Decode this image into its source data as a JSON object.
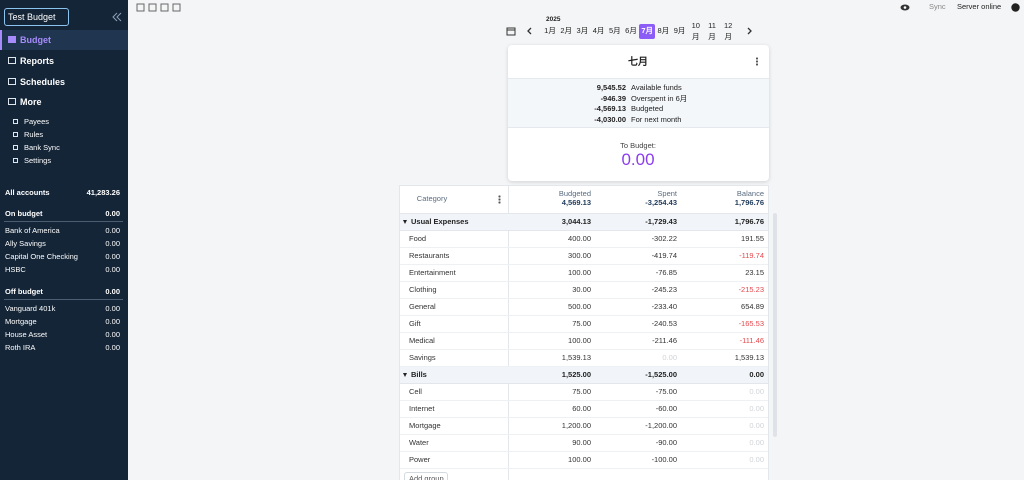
{
  "sidebar": {
    "budget_name": "Test Budget",
    "nav": [
      "Budget",
      "Reports",
      "Schedules",
      "More"
    ],
    "more_items": [
      "Payees",
      "Rules",
      "Bank Sync",
      "Settings"
    ],
    "all_accounts": {
      "name": "All accounts",
      "balance": "41,283.26"
    },
    "account_groups": [
      {
        "name": "On budget",
        "balance": "0.00",
        "accounts": [
          {
            "name": "Bank of America",
            "balance": "0.00"
          },
          {
            "name": "Ally Savings",
            "balance": "0.00"
          },
          {
            "name": "Capital One Checking",
            "balance": "0.00"
          },
          {
            "name": "HSBC",
            "balance": "0.00"
          }
        ]
      },
      {
        "name": "Off budget",
        "balance": "0.00",
        "accounts": [
          {
            "name": "Vanguard 401k",
            "balance": "0.00"
          },
          {
            "name": "Mortgage",
            "balance": "0.00"
          },
          {
            "name": "House Asset",
            "balance": "0.00"
          },
          {
            "name": "Roth IRA",
            "balance": "0.00"
          }
        ]
      }
    ]
  },
  "header": {
    "sync": "Sync",
    "server_status": "Server online"
  },
  "month_picker": {
    "year": "2025",
    "months": [
      "1月",
      "2月",
      "3月",
      "4月",
      "5月",
      "6月",
      "7月",
      "8月",
      "9月",
      "10月",
      "11月",
      "12月"
    ],
    "selected": 6
  },
  "summary": {
    "month": "七月",
    "rows": [
      {
        "value": "9,545.52",
        "label": "Available funds"
      },
      {
        "value": "-946.39",
        "label": "Overspent in 6月"
      },
      {
        "value": "-4,569.13",
        "label": "Budgeted"
      },
      {
        "value": "-4,030.00",
        "label": "For next month"
      }
    ],
    "to_budget_label": "To Budget:",
    "to_budget": "0.00"
  },
  "table": {
    "columns": {
      "category": "Category",
      "budgeted": "Budgeted",
      "spent": "Spent",
      "balance": "Balance"
    },
    "totals": {
      "budgeted": "4,569.13",
      "spent": "-3,254.43",
      "balance": "1,796.76"
    },
    "groups": [
      {
        "name": "Usual Expenses",
        "budgeted": "3,044.13",
        "spent": "-1,729.43",
        "balance": "1,796.76",
        "rows": [
          {
            "name": "Food",
            "budgeted": "400.00",
            "spent": "-302.22",
            "balance": "191.55"
          },
          {
            "name": "Restaurants",
            "budgeted": "300.00",
            "spent": "-419.74",
            "balance": "-119.74"
          },
          {
            "name": "Entertainment",
            "budgeted": "100.00",
            "spent": "-76.85",
            "balance": "23.15"
          },
          {
            "name": "Clothing",
            "budgeted": "30.00",
            "spent": "-245.23",
            "balance": "-215.23"
          },
          {
            "name": "General",
            "budgeted": "500.00",
            "spent": "-233.40",
            "balance": "654.89"
          },
          {
            "name": "Gift",
            "budgeted": "75.00",
            "spent": "-240.53",
            "balance": "-165.53"
          },
          {
            "name": "Medical",
            "budgeted": "100.00",
            "spent": "-211.46",
            "balance": "-111.46"
          },
          {
            "name": "Savings",
            "budgeted": "1,539.13",
            "spent": "0.00",
            "balance": "1,539.13"
          }
        ]
      },
      {
        "name": "Bills",
        "budgeted": "1,525.00",
        "spent": "-1,525.00",
        "balance": "0.00",
        "rows": [
          {
            "name": "Cell",
            "budgeted": "75.00",
            "spent": "-75.00",
            "balance": "0.00"
          },
          {
            "name": "Internet",
            "budgeted": "60.00",
            "spent": "-60.00",
            "balance": "0.00"
          },
          {
            "name": "Mortgage",
            "budgeted": "1,200.00",
            "spent": "-1,200.00",
            "balance": "0.00"
          },
          {
            "name": "Water",
            "budgeted": "90.00",
            "spent": "-90.00",
            "balance": "0.00"
          },
          {
            "name": "Power",
            "budgeted": "100.00",
            "spent": "-100.00",
            "balance": "0.00"
          }
        ]
      }
    ],
    "add_group": "Add group"
  }
}
